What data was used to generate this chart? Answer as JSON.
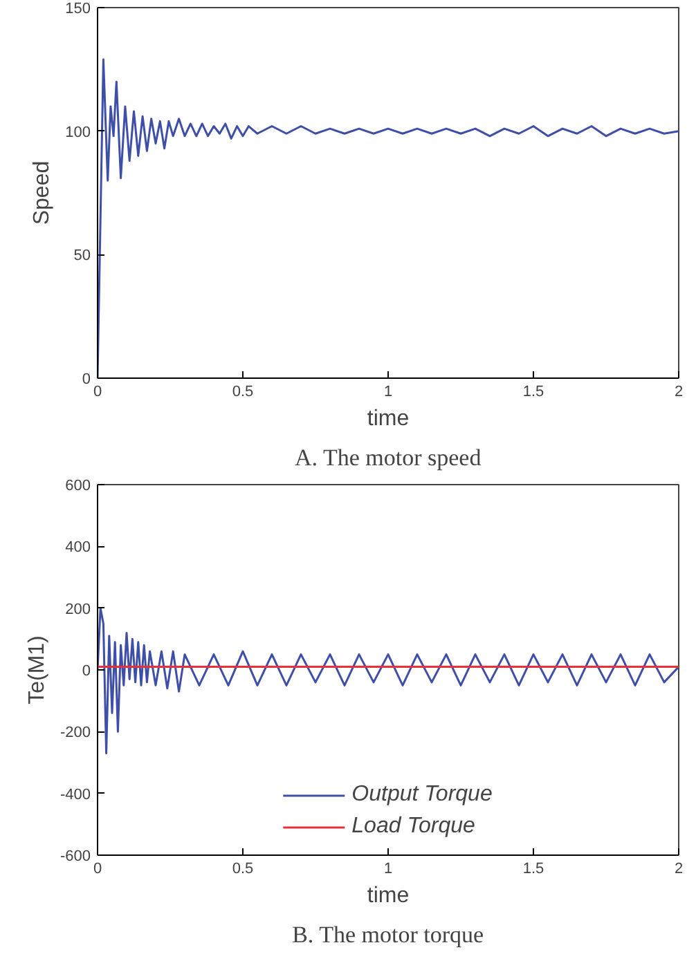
{
  "chart_data": [
    {
      "type": "line",
      "xlabel": "time",
      "ylabel": "Speed",
      "annotations": [
        "A. The motor speed"
      ],
      "xlim": [
        0,
        2
      ],
      "ylim": [
        0,
        150
      ],
      "xticks": [
        0,
        0.5,
        1,
        1.5,
        2
      ],
      "yticks": [
        0,
        50,
        100,
        150
      ],
      "grid": false,
      "legend": false,
      "series": [
        {
          "color": "#3f4fa8",
          "x": [
            0,
            0.02,
            0.035,
            0.045,
            0.055,
            0.065,
            0.08,
            0.095,
            0.11,
            0.125,
            0.14,
            0.155,
            0.17,
            0.185,
            0.2,
            0.215,
            0.23,
            0.245,
            0.26,
            0.28,
            0.3,
            0.32,
            0.34,
            0.36,
            0.38,
            0.4,
            0.42,
            0.44,
            0.46,
            0.48,
            0.5,
            0.52,
            0.55,
            0.6,
            0.65,
            0.7,
            0.75,
            0.8,
            0.85,
            0.9,
            0.95,
            1.0,
            1.05,
            1.1,
            1.15,
            1.2,
            1.25,
            1.3,
            1.35,
            1.4,
            1.45,
            1.5,
            1.55,
            1.6,
            1.65,
            1.7,
            1.75,
            1.8,
            1.85,
            1.9,
            1.95,
            2.0
          ],
          "values": [
            0,
            129,
            80,
            110,
            98,
            120,
            81,
            110,
            88,
            108,
            90,
            106,
            92,
            105,
            95,
            104,
            93,
            104,
            98,
            105,
            98,
            103,
            98,
            103,
            98,
            102,
            99,
            103,
            97,
            102,
            98,
            102,
            99,
            102,
            99,
            102,
            99,
            101,
            99,
            101,
            99,
            101,
            99,
            101,
            99,
            101,
            99,
            101,
            98,
            101,
            99,
            102,
            98,
            101,
            99,
            102,
            98,
            101,
            99,
            101,
            99,
            100
          ]
        }
      ]
    },
    {
      "type": "line",
      "xlabel": "time",
      "ylabel": "Te(M1)",
      "annotations": [
        "B. The motor torque"
      ],
      "xlim": [
        0,
        2
      ],
      "ylim": [
        -600,
        600
      ],
      "xticks": [
        0,
        0.5,
        1,
        1.5,
        2
      ],
      "yticks": [
        -600,
        -400,
        -200,
        0,
        200,
        400,
        600
      ],
      "grid": false,
      "legend": "bottom",
      "series": [
        {
          "name": "Output Torque",
          "color": "#3f4fa8",
          "x": [
            0,
            0.01,
            0.02,
            0.03,
            0.04,
            0.05,
            0.06,
            0.07,
            0.08,
            0.09,
            0.1,
            0.11,
            0.12,
            0.13,
            0.14,
            0.15,
            0.16,
            0.17,
            0.18,
            0.2,
            0.22,
            0.24,
            0.26,
            0.28,
            0.3,
            0.35,
            0.4,
            0.45,
            0.5,
            0.55,
            0.6,
            0.65,
            0.7,
            0.75,
            0.8,
            0.85,
            0.9,
            0.95,
            1.0,
            1.05,
            1.1,
            1.15,
            1.2,
            1.25,
            1.3,
            1.35,
            1.4,
            1.45,
            1.5,
            1.55,
            1.6,
            1.65,
            1.7,
            1.75,
            1.8,
            1.85,
            1.9,
            1.95,
            2.0
          ],
          "values": [
            0,
            200,
            150,
            -270,
            110,
            -140,
            90,
            -200,
            80,
            -50,
            120,
            -30,
            100,
            -40,
            90,
            -50,
            80,
            -40,
            60,
            -50,
            60,
            -60,
            60,
            -70,
            50,
            -50,
            50,
            -50,
            60,
            -50,
            50,
            -50,
            50,
            -40,
            50,
            -50,
            50,
            -40,
            50,
            -50,
            50,
            -40,
            50,
            -50,
            50,
            -40,
            50,
            -50,
            50,
            -40,
            50,
            -50,
            50,
            -40,
            50,
            -50,
            50,
            -40,
            10
          ]
        },
        {
          "name": "Load Torque",
          "color": "#e8303a",
          "x": [
            0,
            2
          ],
          "values": [
            10,
            10
          ]
        }
      ]
    }
  ]
}
